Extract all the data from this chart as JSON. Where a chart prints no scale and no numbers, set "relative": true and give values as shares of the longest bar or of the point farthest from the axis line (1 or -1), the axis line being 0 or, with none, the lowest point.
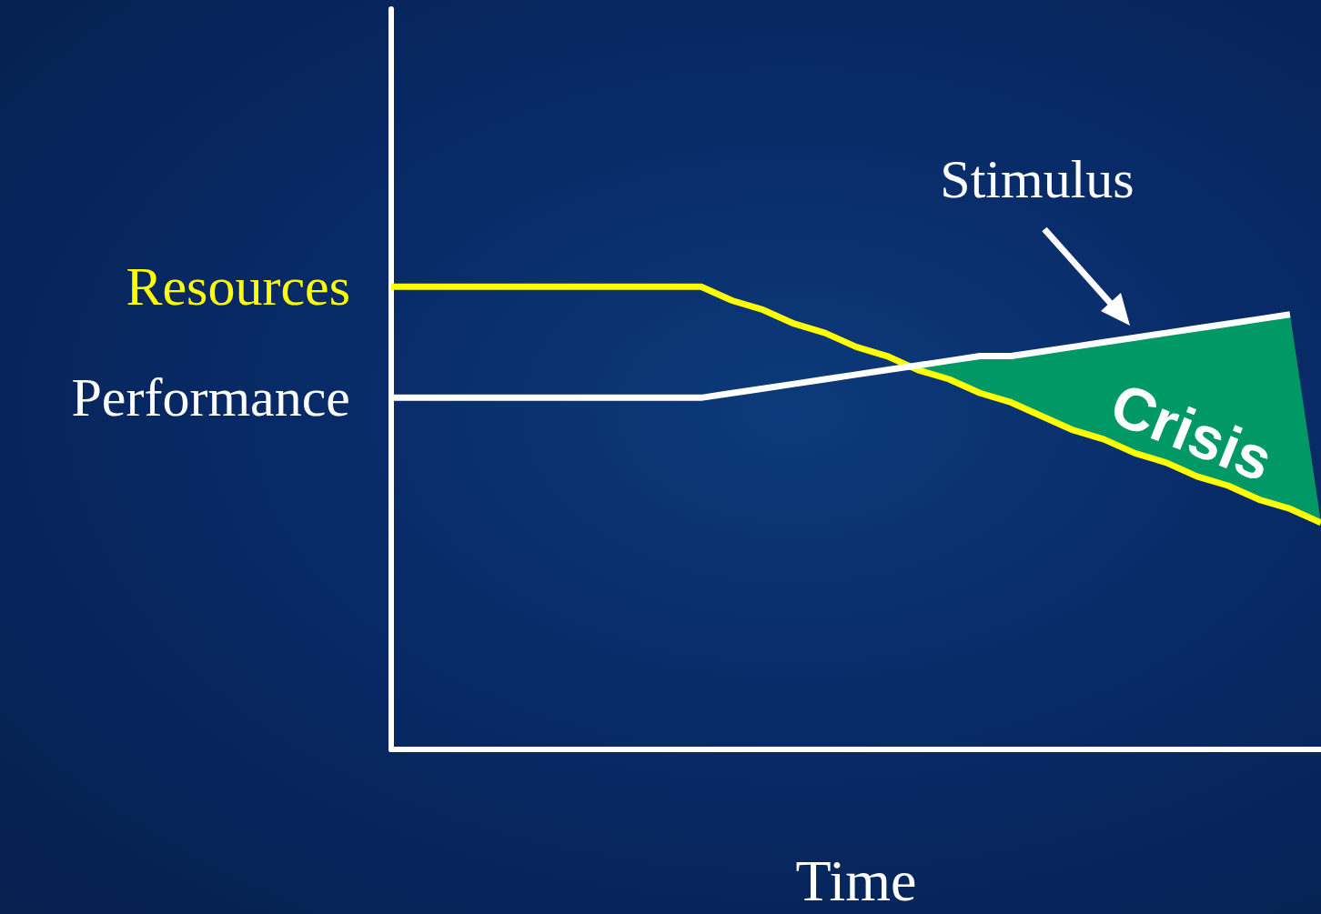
{
  "chart_data": {
    "type": "line",
    "xlabel": "Time",
    "relative": true,
    "tick_labels": false,
    "legend": false,
    "grid": false,
    "marker": "none",
    "line_style": "solid",
    "categories": [
      null,
      null,
      null,
      null,
      null,
      null,
      null,
      null,
      null,
      null,
      null,
      null,
      null,
      null,
      null,
      null,
      null,
      null,
      null,
      null,
      null,
      null,
      null,
      null,
      null,
      null,
      null,
      null,
      null,
      null,
      null
    ],
    "series": [
      {
        "name": "Resources",
        "color": "#ffff00",
        "values": [
          1,
          1,
          1,
          1,
          1,
          1,
          1,
          1,
          1,
          1,
          1,
          0.97,
          0.95,
          0.92,
          0.9,
          0.87,
          0.85,
          0.82,
          0.8,
          0.77,
          0.75,
          0.72,
          0.69,
          0.67,
          0.64,
          0.62,
          0.59,
          0.57,
          0.54,
          0.52,
          0.49
        ]
      },
      {
        "name": "Performance",
        "color": "#ffffff",
        "values": [
          0.76,
          0.76,
          0.76,
          0.76,
          0.76,
          0.76,
          0.76,
          0.76,
          0.76,
          0.76,
          0.76,
          0.77,
          0.78,
          0.79,
          0.8,
          0.81,
          0.82,
          0.83,
          0.84,
          0.85,
          0.85,
          0.86,
          0.87,
          0.88,
          0.89,
          0.9,
          0.91,
          0.92,
          0.93,
          0.94,
          null
        ]
      }
    ],
    "annotations": [
      "Stimulus",
      "Crisis"
    ]
  }
}
